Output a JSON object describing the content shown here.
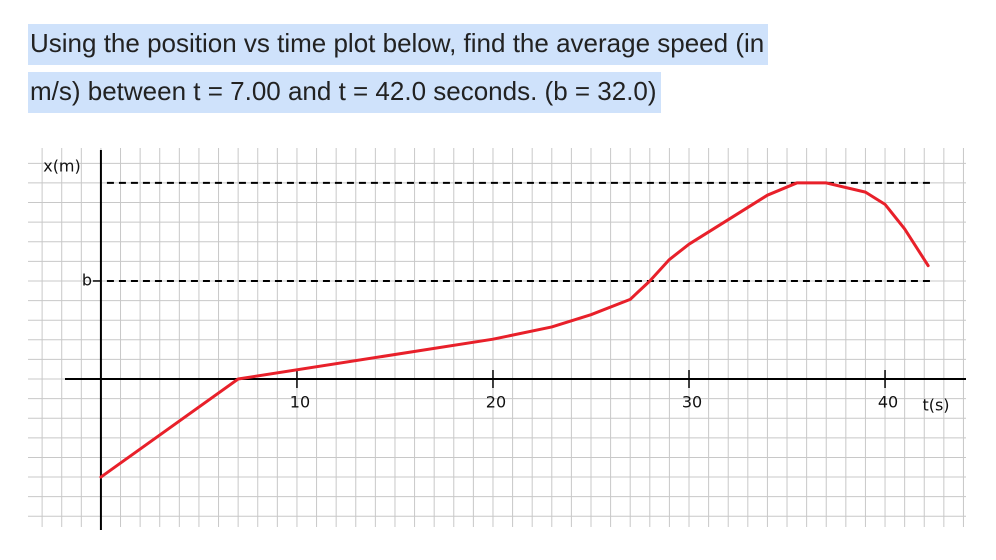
{
  "question": {
    "lines": [
      "Using the position vs time plot below, find the average speed (in",
      "m/s) between t = 7.00 and t = 42.0 seconds. (b = 32.0)"
    ]
  },
  "chart_data": {
    "type": "line",
    "xlabel": "t(s)",
    "ylabel": "x(m)",
    "x": [
      0,
      7,
      20,
      23,
      25,
      27,
      28,
      29,
      30,
      32,
      34,
      35.5,
      37,
      39,
      40,
      41,
      42.2
    ],
    "series": [
      {
        "color": "#e8202a",
        "values": [
          -32,
          0,
          13,
          17,
          21,
          26,
          32,
          39,
          44,
          52,
          60,
          64,
          64,
          61,
          57,
          49,
          37
        ]
      }
    ],
    "xlim": [
      -3.72,
      44.13
    ],
    "ylim": [
      -48.3,
      75.4
    ],
    "xticks": [
      10,
      20,
      30,
      40
    ],
    "yticks": [
      {
        "value": 32,
        "label": "b"
      }
    ],
    "dashed_lines": [
      32,
      64
    ],
    "grid": true
  }
}
